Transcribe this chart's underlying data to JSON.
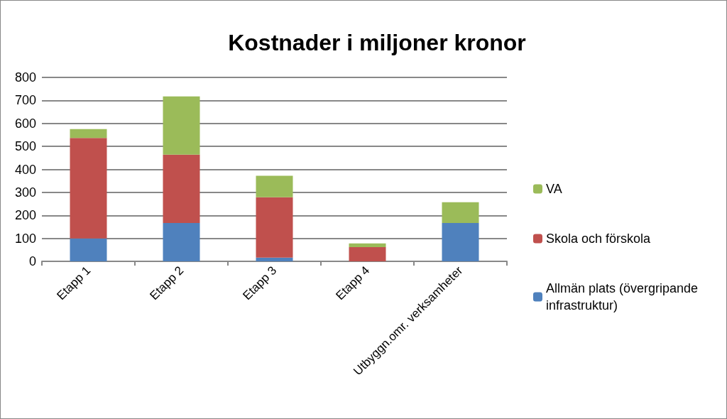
{
  "chart_data": {
    "type": "bar",
    "title": "Kostnader i miljoner kronor",
    "stacked": true,
    "categories": [
      "Etapp 1",
      "Etapp 2",
      "Etapp 3",
      "Etapp 4",
      "Utbyggn.omr. verksamheter"
    ],
    "series": [
      {
        "name": "Allmän plats (övergripande infrastruktur)",
        "color": "#4f81bd",
        "values": [
          100,
          167,
          16,
          null,
          167
        ]
      },
      {
        "name": "Skola och förskola",
        "color": "#c0504d",
        "values": [
          437,
          297,
          263,
          62,
          0
        ]
      },
      {
        "name": "VA",
        "color": "#9bbb59",
        "values": [
          38,
          253,
          93,
          16,
          90
        ]
      }
    ],
    "ylim": [
      0,
      800
    ],
    "yticks": [
      0,
      100,
      200,
      300,
      400,
      500,
      600,
      700,
      800
    ],
    "grid": "y",
    "legend": "right"
  }
}
